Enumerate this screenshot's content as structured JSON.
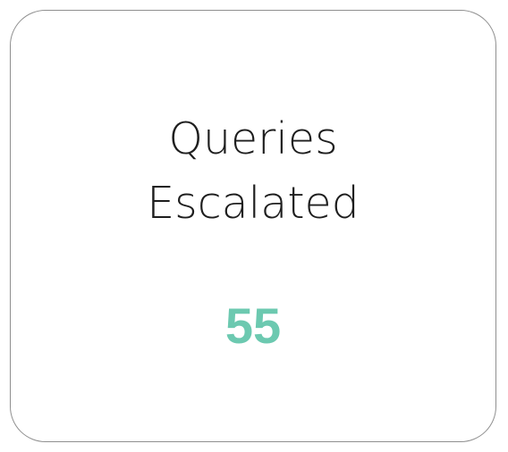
{
  "card": {
    "title_line1": "Queries",
    "title_line2": "Escalated",
    "value": "55",
    "value_color": "#6cc9b0"
  }
}
